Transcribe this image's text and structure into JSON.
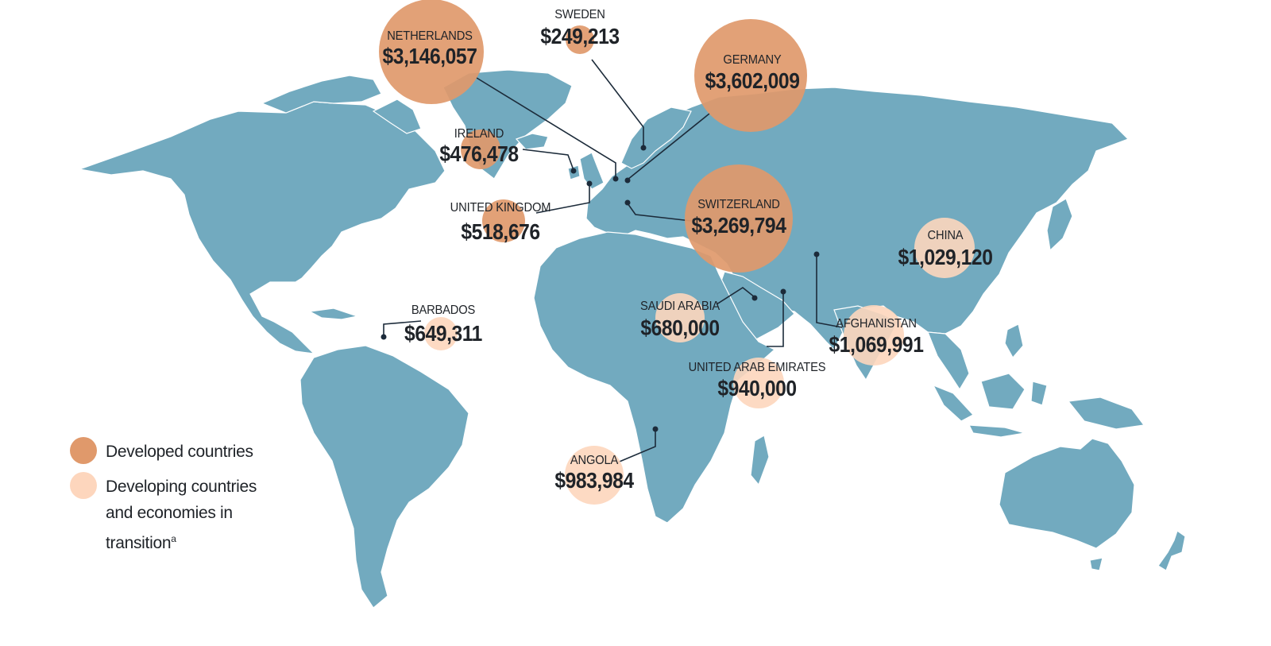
{
  "legend": {
    "developed": {
      "label": "Developed countries",
      "color": "#e0996b"
    },
    "developing": {
      "label_line1": "Developing countries",
      "label_line2": "and economies in",
      "label_line3": "transition",
      "footnote_marker": "a",
      "color": "#fdd6bd"
    }
  },
  "countries": [
    {
      "id": "netherlands",
      "name": "NETHERLANDS",
      "value": "$3,146,057",
      "group": "developed"
    },
    {
      "id": "sweden",
      "name": "SWEDEN",
      "value": "$249,213",
      "group": "developed"
    },
    {
      "id": "germany",
      "name": "GERMANY",
      "value": "$3,602,009",
      "group": "developed"
    },
    {
      "id": "ireland",
      "name": "IRELAND",
      "value": "$476,478",
      "group": "developed"
    },
    {
      "id": "united-kingdom",
      "name": "UNITED KINGDOM",
      "value": "$518,676",
      "group": "developed"
    },
    {
      "id": "switzerland",
      "name": "SWITZERLAND",
      "value": "$3,269,794",
      "group": "developed"
    },
    {
      "id": "china",
      "name": "CHINA",
      "value": "$1,029,120",
      "group": "developing"
    },
    {
      "id": "barbados",
      "name": "BARBADOS",
      "value": "$649,311",
      "group": "developing"
    },
    {
      "id": "saudi-arabia",
      "name": "SAUDI ARABIA",
      "value": "$680,000",
      "group": "developing"
    },
    {
      "id": "afghanistan",
      "name": "AFGHANISTAN",
      "value": "$1,069,991",
      "group": "developing"
    },
    {
      "id": "united-arab-emirates",
      "name": "UNITED ARAB EMIRATES",
      "value": "$940,000",
      "group": "developing"
    },
    {
      "id": "angola",
      "name": "ANGOLA",
      "value": "$983,984",
      "group": "developing"
    }
  ]
}
